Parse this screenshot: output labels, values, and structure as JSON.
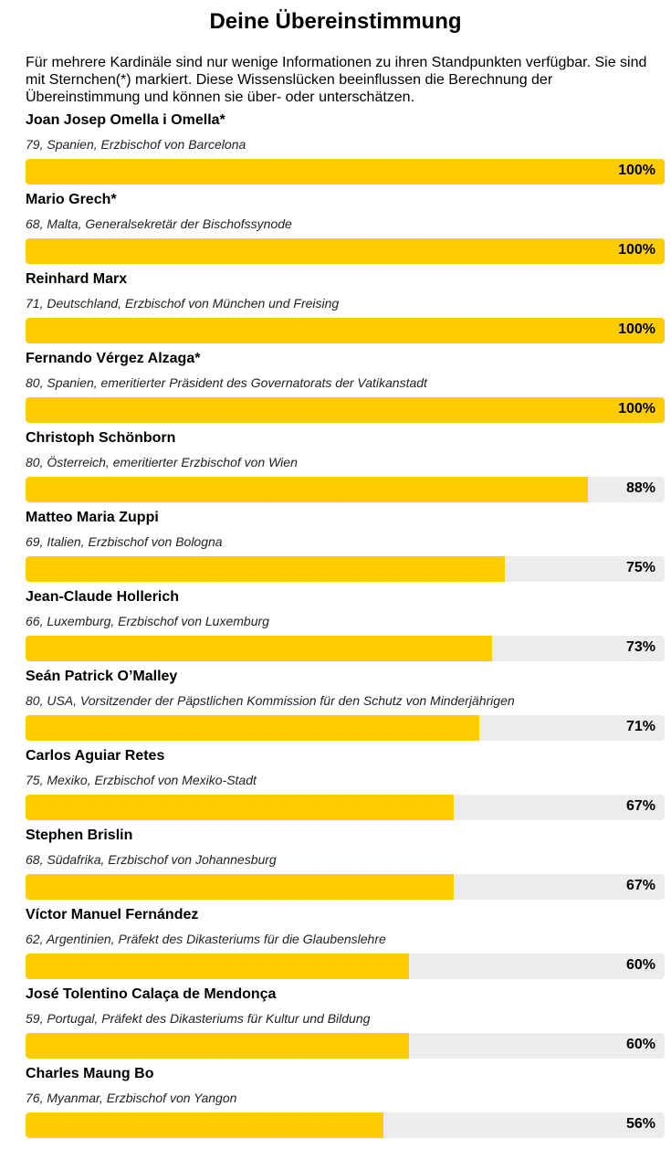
{
  "title": "Deine Übereinstimmung",
  "intro": "Für mehrere Kardinäle sind nur wenige Informationen zu ihren Standpunkten verfügbar. Sie sind mit Sternchen(*) markiert. Diese Wissenslücken beeinflussen die Berechnung der Übereinstimmung und können sie über- oder unterschätzen.",
  "colors": {
    "bar_fill": "#ffcc00",
    "bar_track": "#ececec"
  },
  "cardinals": [
    {
      "name": "Joan Josep Omella i Omella*",
      "meta": "79, Spanien, Erzbischof von Barcelona",
      "match": 100,
      "match_label": "100%"
    },
    {
      "name": "Mario Grech*",
      "meta": "68, Malta, Generalsekretär der Bischofssynode",
      "match": 100,
      "match_label": "100%"
    },
    {
      "name": "Reinhard Marx",
      "meta": "71, Deutschland, Erzbischof von München und Freising",
      "match": 100,
      "match_label": "100%"
    },
    {
      "name": "Fernando Vérgez Alzaga*",
      "meta": "80, Spanien, emeritierter Präsident des Governatorats der Vatikanstadt",
      "match": 100,
      "match_label": "100%"
    },
    {
      "name": "Christoph Schönborn",
      "meta": "80, Österreich, emeritierter Erzbischof von Wien",
      "match": 88,
      "match_label": "88%"
    },
    {
      "name": "Matteo Maria Zuppi",
      "meta": "69, Italien, Erzbischof von Bologna",
      "match": 75,
      "match_label": "75%"
    },
    {
      "name": "Jean-Claude Hollerich",
      "meta": "66, Luxemburg, Erzbischof von Luxemburg",
      "match": 73,
      "match_label": "73%"
    },
    {
      "name": "Seán Patrick O’Malley",
      "meta": "80, USA, Vorsitzender der Päpstlichen Kommission für den Schutz von Minderjährigen",
      "match": 71,
      "match_label": "71%"
    },
    {
      "name": "Carlos Aguiar Retes",
      "meta": "75, Mexiko, Erzbischof von Mexiko-Stadt",
      "match": 67,
      "match_label": "67%"
    },
    {
      "name": "Stephen Brislin",
      "meta": "68, Südafrika, Erzbischof von Johannesburg",
      "match": 67,
      "match_label": "67%"
    },
    {
      "name": "Víctor Manuel Fernández",
      "meta": "62, Argentinien, Präfekt des Dikasteriums für die Glaubenslehre",
      "match": 60,
      "match_label": "60%"
    },
    {
      "name": "José Tolentino Calaça de Mendonça",
      "meta": "59, Portugal, Präfekt des Dikasteriums für Kultur und Bildung",
      "match": 60,
      "match_label": "60%"
    },
    {
      "name": "Charles Maung Bo",
      "meta": "76, Myanmar, Erzbischof von Yangon",
      "match": 56,
      "match_label": "56%"
    }
  ]
}
